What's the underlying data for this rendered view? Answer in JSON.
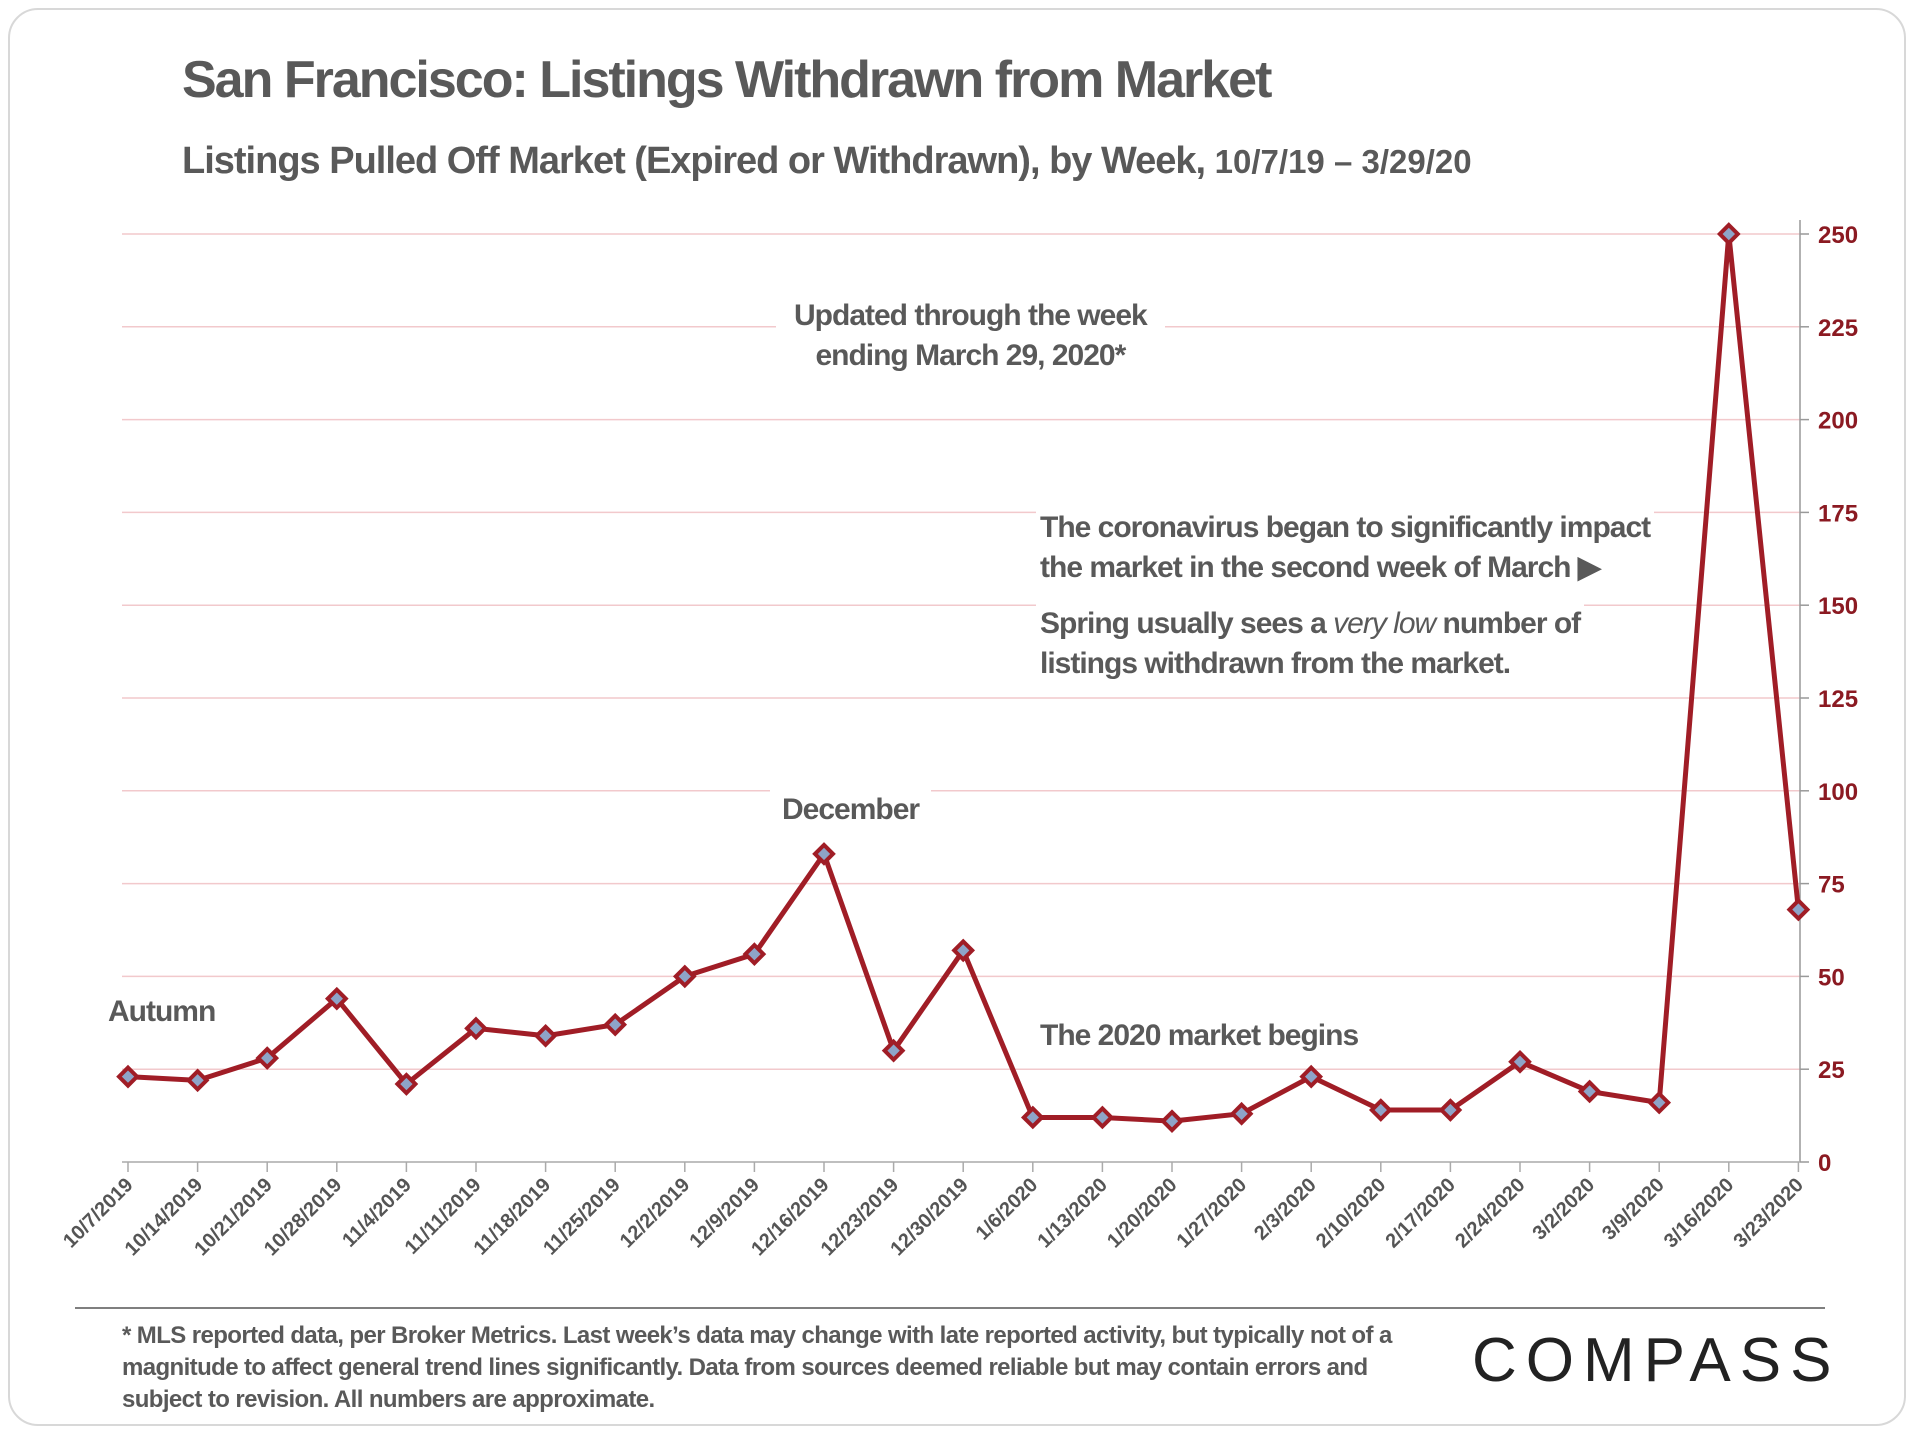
{
  "title": "San Francisco: Listings Withdrawn from Market",
  "subtitle_main": "Listings Pulled Off Market (Expired or Withdrawn), by Week,",
  "subtitle_dates": "10/7/19 – 3/29/20",
  "annotations": {
    "updated_line1": "Updated through the week",
    "updated_line2": "ending March 29, 2020*",
    "corona_line1": "The coronavirus began to significantly impact",
    "corona_line2": "the market in the second week of March ▶",
    "spring_pre": "Spring usually sees a ",
    "spring_em": "very low",
    "spring_post": " number of",
    "spring_line2": "listings withdrawn from the market.",
    "december": "December",
    "autumn": "Autumn",
    "market_2020": "The 2020 market begins"
  },
  "footnote": "* MLS reported data, per Broker Metrics. Last week’s data may change with late reported activity, but typically not of a magnitude to affect general trend lines significantly. Data from sources deemed reliable but may contain errors and subject to revision. All numbers are approximate.",
  "logo": "COMPASS",
  "colors": {
    "line": "#a01d26",
    "marker_fill": "#8ea4c8",
    "grid": "#f2c9cc",
    "axis_text": "#8b1a22"
  },
  "chart_data": {
    "type": "line",
    "x": [
      "10/7/2019",
      "10/14/2019",
      "10/21/2019",
      "10/28/2019",
      "11/4/2019",
      "11/11/2019",
      "11/18/2019",
      "11/25/2019",
      "12/2/2019",
      "12/9/2019",
      "12/16/2019",
      "12/23/2019",
      "12/30/2019",
      "1/6/2020",
      "1/13/2020",
      "1/20/2020",
      "1/27/2020",
      "2/3/2020",
      "2/10/2020",
      "2/17/2020",
      "2/24/2020",
      "3/2/2020",
      "3/9/2020",
      "3/16/2020",
      "3/23/2020"
    ],
    "series": [
      {
        "values": [
          23,
          22,
          28,
          44,
          21,
          36,
          34,
          37,
          50,
          56,
          83,
          30,
          57,
          12,
          12,
          11,
          13,
          23,
          14,
          14,
          27,
          19,
          16,
          250,
          68
        ]
      }
    ],
    "y_axis_side": "right",
    "ylim": [
      0,
      250
    ],
    "yticks": [
      0,
      25,
      50,
      75,
      100,
      125,
      150,
      175,
      200,
      225,
      250
    ],
    "grid": true,
    "marker": "diamond"
  }
}
